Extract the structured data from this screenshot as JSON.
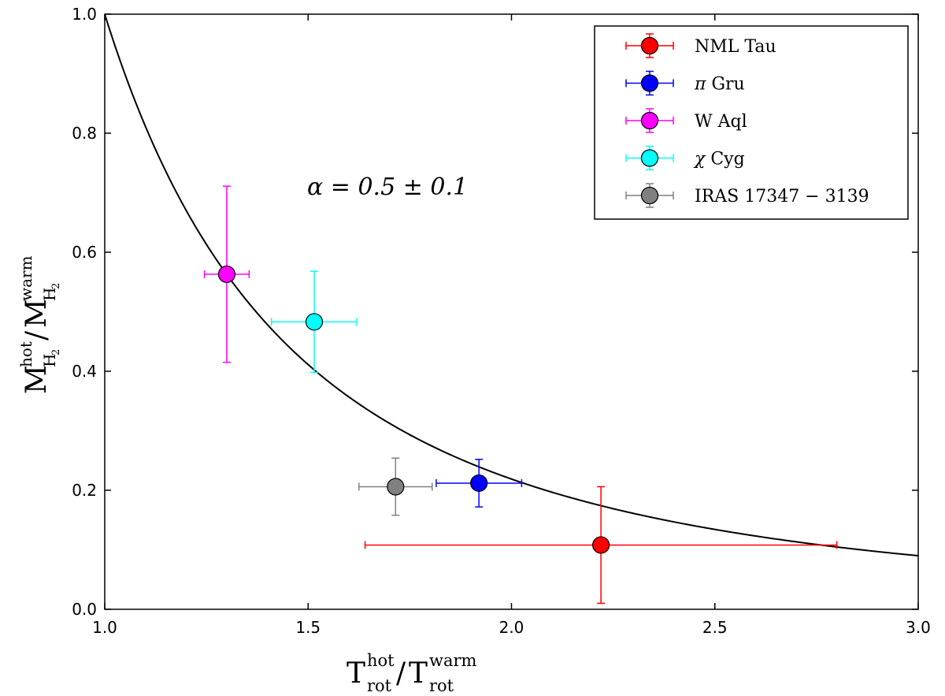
{
  "chart_data": {
    "type": "scatter",
    "xlim": [
      1.0,
      3.0
    ],
    "ylim": [
      0.0,
      1.0
    ],
    "xticks": [
      1.0,
      1.5,
      2.0,
      2.5,
      3.0
    ],
    "yticks": [
      0.0,
      0.2,
      0.4,
      0.6,
      0.8,
      1.0
    ],
    "xtick_labels": [
      "1.0",
      "1.5",
      "2.0",
      "2.5",
      "3.0"
    ],
    "ytick_labels": [
      "0.0",
      "0.2",
      "0.4",
      "0.6",
      "0.8",
      "1.0"
    ],
    "xlabel": {
      "base": "T",
      "num_sup": "hot",
      "num_sub": "rot",
      "sep": "/",
      "den_sup": "warm",
      "den_sub": "rot"
    },
    "ylabel": {
      "base": "M",
      "num_sup": "hot",
      "num_sub": "H",
      "sub_sub": "2",
      "sep": "/",
      "den_sup": "warm",
      "den_sub": "H"
    },
    "annotation": "α = 0.5 ± 0.1",
    "legend_position": "top-right",
    "curve": {
      "model": "y = (x^(-1/alpha) - x^(-4)) / (1 - x^(-4))-like decay",
      "alpha": 0.5
    },
    "series": [
      {
        "name": "NML Tau",
        "label_sym": "",
        "label_text": "NML Tau",
        "color": "#ff0000",
        "x": 2.22,
        "y": 0.108,
        "xerr": [
          0.58,
          0.58
        ],
        "yerr": [
          0.098,
          0.098
        ]
      },
      {
        "name": "π Gru",
        "label_sym": "π",
        "label_text": "Gru",
        "color": "#0000ff",
        "x": 1.92,
        "y": 0.212,
        "xerr": [
          0.105,
          0.105
        ],
        "yerr": [
          0.04,
          0.04
        ]
      },
      {
        "name": "W Aql",
        "label_sym": "",
        "label_text": "W Aql",
        "color": "#ff00ff",
        "x": 1.3,
        "y": 0.563,
        "xerr": [
          0.055,
          0.055
        ],
        "yerr": [
          0.148,
          0.148
        ]
      },
      {
        "name": "χ Cyg",
        "label_sym": "χ",
        "label_text": "Cyg",
        "color": "#00ffff",
        "x": 1.515,
        "y": 0.483,
        "xerr": [
          0.105,
          0.105
        ],
        "yerr": [
          0.085,
          0.085
        ]
      },
      {
        "name": "IRAS 17347 − 3139",
        "label_sym": "",
        "label_text": "IRAS 17347 − 3139",
        "color": "#808080",
        "x": 1.715,
        "y": 0.206,
        "xerr": [
          0.09,
          0.09
        ],
        "yerr": [
          0.048,
          0.048
        ]
      }
    ]
  }
}
